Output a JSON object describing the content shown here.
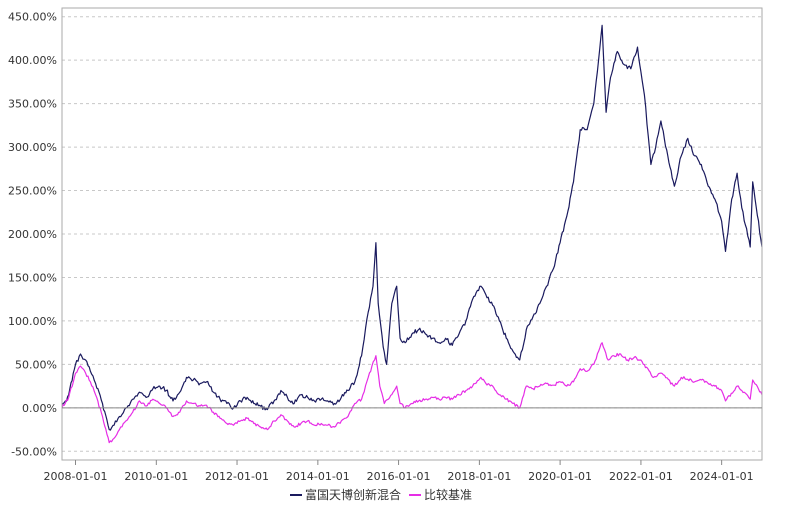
{
  "chart_data": {
    "type": "line",
    "title": "",
    "xlabel": "",
    "ylabel": "",
    "x_ticks": [
      "2008-01-01",
      "2010-01-01",
      "2012-01-01",
      "2014-01-01",
      "2016-01-01",
      "2018-01-01",
      "2020-01-01",
      "2022-01-01",
      "2024-01-01"
    ],
    "y_ticks": [
      "-50.00%",
      "0.00%",
      "50.00%",
      "100.00%",
      "150.00%",
      "200.00%",
      "250.00%",
      "300.00%",
      "350.00%",
      "400.00%",
      "450.00%"
    ],
    "xlim": [
      "2007-09-01",
      "2024-12-31"
    ],
    "ylim": [
      -60,
      460
    ],
    "grid": true,
    "legend_position": "bottom-center",
    "series": [
      {
        "name": "富国天博创新混合",
        "color": "#1a1a5e",
        "points": [
          [
            "2007-09-01",
            0
          ],
          [
            "2007-11-01",
            15
          ],
          [
            "2008-01-01",
            50
          ],
          [
            "2008-02-15",
            62
          ],
          [
            "2008-04-01",
            55
          ],
          [
            "2008-05-15",
            42
          ],
          [
            "2008-07-01",
            28
          ],
          [
            "2008-09-01",
            5
          ],
          [
            "2008-11-01",
            -25
          ],
          [
            "2008-12-15",
            -20
          ],
          [
            "2009-02-01",
            -10
          ],
          [
            "2009-04-01",
            0
          ],
          [
            "2009-06-01",
            10
          ],
          [
            "2009-08-01",
            18
          ],
          [
            "2009-10-01",
            12
          ],
          [
            "2009-12-01",
            22
          ],
          [
            "2010-02-01",
            25
          ],
          [
            "2010-04-01",
            20
          ],
          [
            "2010-06-01",
            8
          ],
          [
            "2010-08-01",
            18
          ],
          [
            "2010-10-01",
            35
          ],
          [
            "2010-12-01",
            32
          ],
          [
            "2011-02-01",
            28
          ],
          [
            "2011-04-01",
            30
          ],
          [
            "2011-06-01",
            18
          ],
          [
            "2011-08-01",
            10
          ],
          [
            "2011-10-01",
            5
          ],
          [
            "2011-12-01",
            0
          ],
          [
            "2012-02-01",
            8
          ],
          [
            "2012-04-01",
            12
          ],
          [
            "2012-06-01",
            5
          ],
          [
            "2012-08-01",
            2
          ],
          [
            "2012-10-01",
            -2
          ],
          [
            "2012-12-01",
            8
          ],
          [
            "2013-02-01",
            20
          ],
          [
            "2013-04-01",
            12
          ],
          [
            "2013-06-01",
            5
          ],
          [
            "2013-08-01",
            15
          ],
          [
            "2013-10-01",
            12
          ],
          [
            "2013-12-01",
            8
          ],
          [
            "2014-02-01",
            10
          ],
          [
            "2014-04-01",
            8
          ],
          [
            "2014-06-01",
            5
          ],
          [
            "2014-08-01",
            12
          ],
          [
            "2014-10-01",
            20
          ],
          [
            "2014-12-01",
            30
          ],
          [
            "2015-02-01",
            60
          ],
          [
            "2015-04-01",
            110
          ],
          [
            "2015-05-15",
            140
          ],
          [
            "2015-06-10",
            190
          ],
          [
            "2015-07-01",
            120
          ],
          [
            "2015-08-15",
            70
          ],
          [
            "2015-09-15",
            50
          ],
          [
            "2015-11-01",
            120
          ],
          [
            "2015-12-15",
            140
          ],
          [
            "2016-01-15",
            80
          ],
          [
            "2016-03-01",
            75
          ],
          [
            "2016-05-01",
            85
          ],
          [
            "2016-07-01",
            90
          ],
          [
            "2016-09-01",
            85
          ],
          [
            "2016-11-01",
            80
          ],
          [
            "2017-01-01",
            75
          ],
          [
            "2017-03-01",
            80
          ],
          [
            "2017-05-01",
            72
          ],
          [
            "2017-07-01",
            85
          ],
          [
            "2017-09-01",
            100
          ],
          [
            "2017-11-01",
            125
          ],
          [
            "2018-01-15",
            140
          ],
          [
            "2018-03-01",
            130
          ],
          [
            "2018-05-01",
            118
          ],
          [
            "2018-07-01",
            100
          ],
          [
            "2018-09-01",
            80
          ],
          [
            "2018-11-01",
            65
          ],
          [
            "2019-01-01",
            55
          ],
          [
            "2019-03-01",
            90
          ],
          [
            "2019-05-01",
            105
          ],
          [
            "2019-07-01",
            120
          ],
          [
            "2019-09-01",
            140
          ],
          [
            "2019-11-01",
            160
          ],
          [
            "2020-01-01",
            190
          ],
          [
            "2020-03-01",
            220
          ],
          [
            "2020-05-01",
            260
          ],
          [
            "2020-07-01",
            320
          ],
          [
            "2020-09-01",
            320
          ],
          [
            "2020-11-01",
            350
          ],
          [
            "2021-01-15",
            440
          ],
          [
            "2021-02-20",
            340
          ],
          [
            "2021-04-01",
            380
          ],
          [
            "2021-06-01",
            410
          ],
          [
            "2021-08-01",
            395
          ],
          [
            "2021-10-01",
            390
          ],
          [
            "2021-12-01",
            415
          ],
          [
            "2022-02-01",
            360
          ],
          [
            "2022-04-01",
            280
          ],
          [
            "2022-05-15",
            300
          ],
          [
            "2022-07-01",
            330
          ],
          [
            "2022-09-01",
            290
          ],
          [
            "2022-10-31",
            255
          ],
          [
            "2023-01-01",
            290
          ],
          [
            "2023-03-01",
            310
          ],
          [
            "2023-05-01",
            290
          ],
          [
            "2023-07-01",
            280
          ],
          [
            "2023-09-01",
            255
          ],
          [
            "2023-11-01",
            240
          ],
          [
            "2024-01-01",
            215
          ],
          [
            "2024-02-05",
            180
          ],
          [
            "2024-04-01",
            240
          ],
          [
            "2024-05-20",
            270
          ],
          [
            "2024-07-01",
            230
          ],
          [
            "2024-09-15",
            185
          ],
          [
            "2024-10-08",
            260
          ],
          [
            "2024-12-31",
            185
          ]
        ]
      },
      {
        "name": "比较基准",
        "color": "#e62ee6",
        "points": [
          [
            "2007-09-01",
            0
          ],
          [
            "2007-11-01",
            12
          ],
          [
            "2008-01-01",
            40
          ],
          [
            "2008-02-15",
            48
          ],
          [
            "2008-04-01",
            40
          ],
          [
            "2008-05-15",
            30
          ],
          [
            "2008-07-01",
            15
          ],
          [
            "2008-09-01",
            -10
          ],
          [
            "2008-11-01",
            -40
          ],
          [
            "2008-12-15",
            -35
          ],
          [
            "2009-02-01",
            -25
          ],
          [
            "2009-04-01",
            -15
          ],
          [
            "2009-06-01",
            -5
          ],
          [
            "2009-08-01",
            8
          ],
          [
            "2009-10-01",
            2
          ],
          [
            "2009-12-01",
            10
          ],
          [
            "2010-02-01",
            5
          ],
          [
            "2010-04-01",
            0
          ],
          [
            "2010-06-01",
            -10
          ],
          [
            "2010-08-01",
            -5
          ],
          [
            "2010-10-01",
            8
          ],
          [
            "2010-12-01",
            5
          ],
          [
            "2011-02-01",
            2
          ],
          [
            "2011-04-01",
            3
          ],
          [
            "2011-06-01",
            -5
          ],
          [
            "2011-08-01",
            -12
          ],
          [
            "2011-10-01",
            -18
          ],
          [
            "2011-12-01",
            -20
          ],
          [
            "2012-02-01",
            -15
          ],
          [
            "2012-04-01",
            -12
          ],
          [
            "2012-06-01",
            -18
          ],
          [
            "2012-08-01",
            -22
          ],
          [
            "2012-10-01",
            -25
          ],
          [
            "2012-12-01",
            -15
          ],
          [
            "2013-02-01",
            -8
          ],
          [
            "2013-04-01",
            -15
          ],
          [
            "2013-06-01",
            -22
          ],
          [
            "2013-08-01",
            -18
          ],
          [
            "2013-10-01",
            -15
          ],
          [
            "2013-12-01",
            -20
          ],
          [
            "2014-02-01",
            -18
          ],
          [
            "2014-04-01",
            -20
          ],
          [
            "2014-06-01",
            -22
          ],
          [
            "2014-08-01",
            -15
          ],
          [
            "2014-10-01",
            -10
          ],
          [
            "2014-12-01",
            5
          ],
          [
            "2015-02-01",
            10
          ],
          [
            "2015-04-01",
            35
          ],
          [
            "2015-06-10",
            60
          ],
          [
            "2015-07-15",
            25
          ],
          [
            "2015-08-25",
            5
          ],
          [
            "2015-10-01",
            10
          ],
          [
            "2015-12-15",
            25
          ],
          [
            "2016-01-15",
            5
          ],
          [
            "2016-03-01",
            0
          ],
          [
            "2016-05-01",
            5
          ],
          [
            "2016-07-01",
            8
          ],
          [
            "2016-09-01",
            10
          ],
          [
            "2016-11-01",
            12
          ],
          [
            "2017-01-01",
            10
          ],
          [
            "2017-03-01",
            12
          ],
          [
            "2017-05-01",
            10
          ],
          [
            "2017-07-01",
            15
          ],
          [
            "2017-09-01",
            20
          ],
          [
            "2017-11-01",
            25
          ],
          [
            "2018-01-15",
            35
          ],
          [
            "2018-03-01",
            28
          ],
          [
            "2018-05-01",
            25
          ],
          [
            "2018-07-01",
            15
          ],
          [
            "2018-09-01",
            10
          ],
          [
            "2018-11-01",
            5
          ],
          [
            "2019-01-01",
            0
          ],
          [
            "2019-03-01",
            25
          ],
          [
            "2019-05-01",
            22
          ],
          [
            "2019-07-01",
            25
          ],
          [
            "2019-09-01",
            28
          ],
          [
            "2019-11-01",
            26
          ],
          [
            "2020-01-01",
            30
          ],
          [
            "2020-03-01",
            25
          ],
          [
            "2020-05-01",
            30
          ],
          [
            "2020-07-01",
            45
          ],
          [
            "2020-09-01",
            42
          ],
          [
            "2020-11-01",
            50
          ],
          [
            "2021-01-15",
            75
          ],
          [
            "2021-03-10",
            55
          ],
          [
            "2021-05-01",
            60
          ],
          [
            "2021-07-01",
            62
          ],
          [
            "2021-09-01",
            55
          ],
          [
            "2021-11-01",
            58
          ],
          [
            "2022-01-01",
            55
          ],
          [
            "2022-04-25",
            35
          ],
          [
            "2022-07-01",
            40
          ],
          [
            "2022-10-31",
            25
          ],
          [
            "2023-01-01",
            35
          ],
          [
            "2023-03-01",
            33
          ],
          [
            "2023-05-01",
            30
          ],
          [
            "2023-07-01",
            32
          ],
          [
            "2023-09-01",
            28
          ],
          [
            "2023-11-01",
            25
          ],
          [
            "2024-01-01",
            20
          ],
          [
            "2024-02-05",
            8
          ],
          [
            "2024-05-20",
            25
          ],
          [
            "2024-07-01",
            20
          ],
          [
            "2024-09-15",
            10
          ],
          [
            "2024-10-08",
            32
          ],
          [
            "2024-12-31",
            15
          ]
        ]
      }
    ]
  }
}
